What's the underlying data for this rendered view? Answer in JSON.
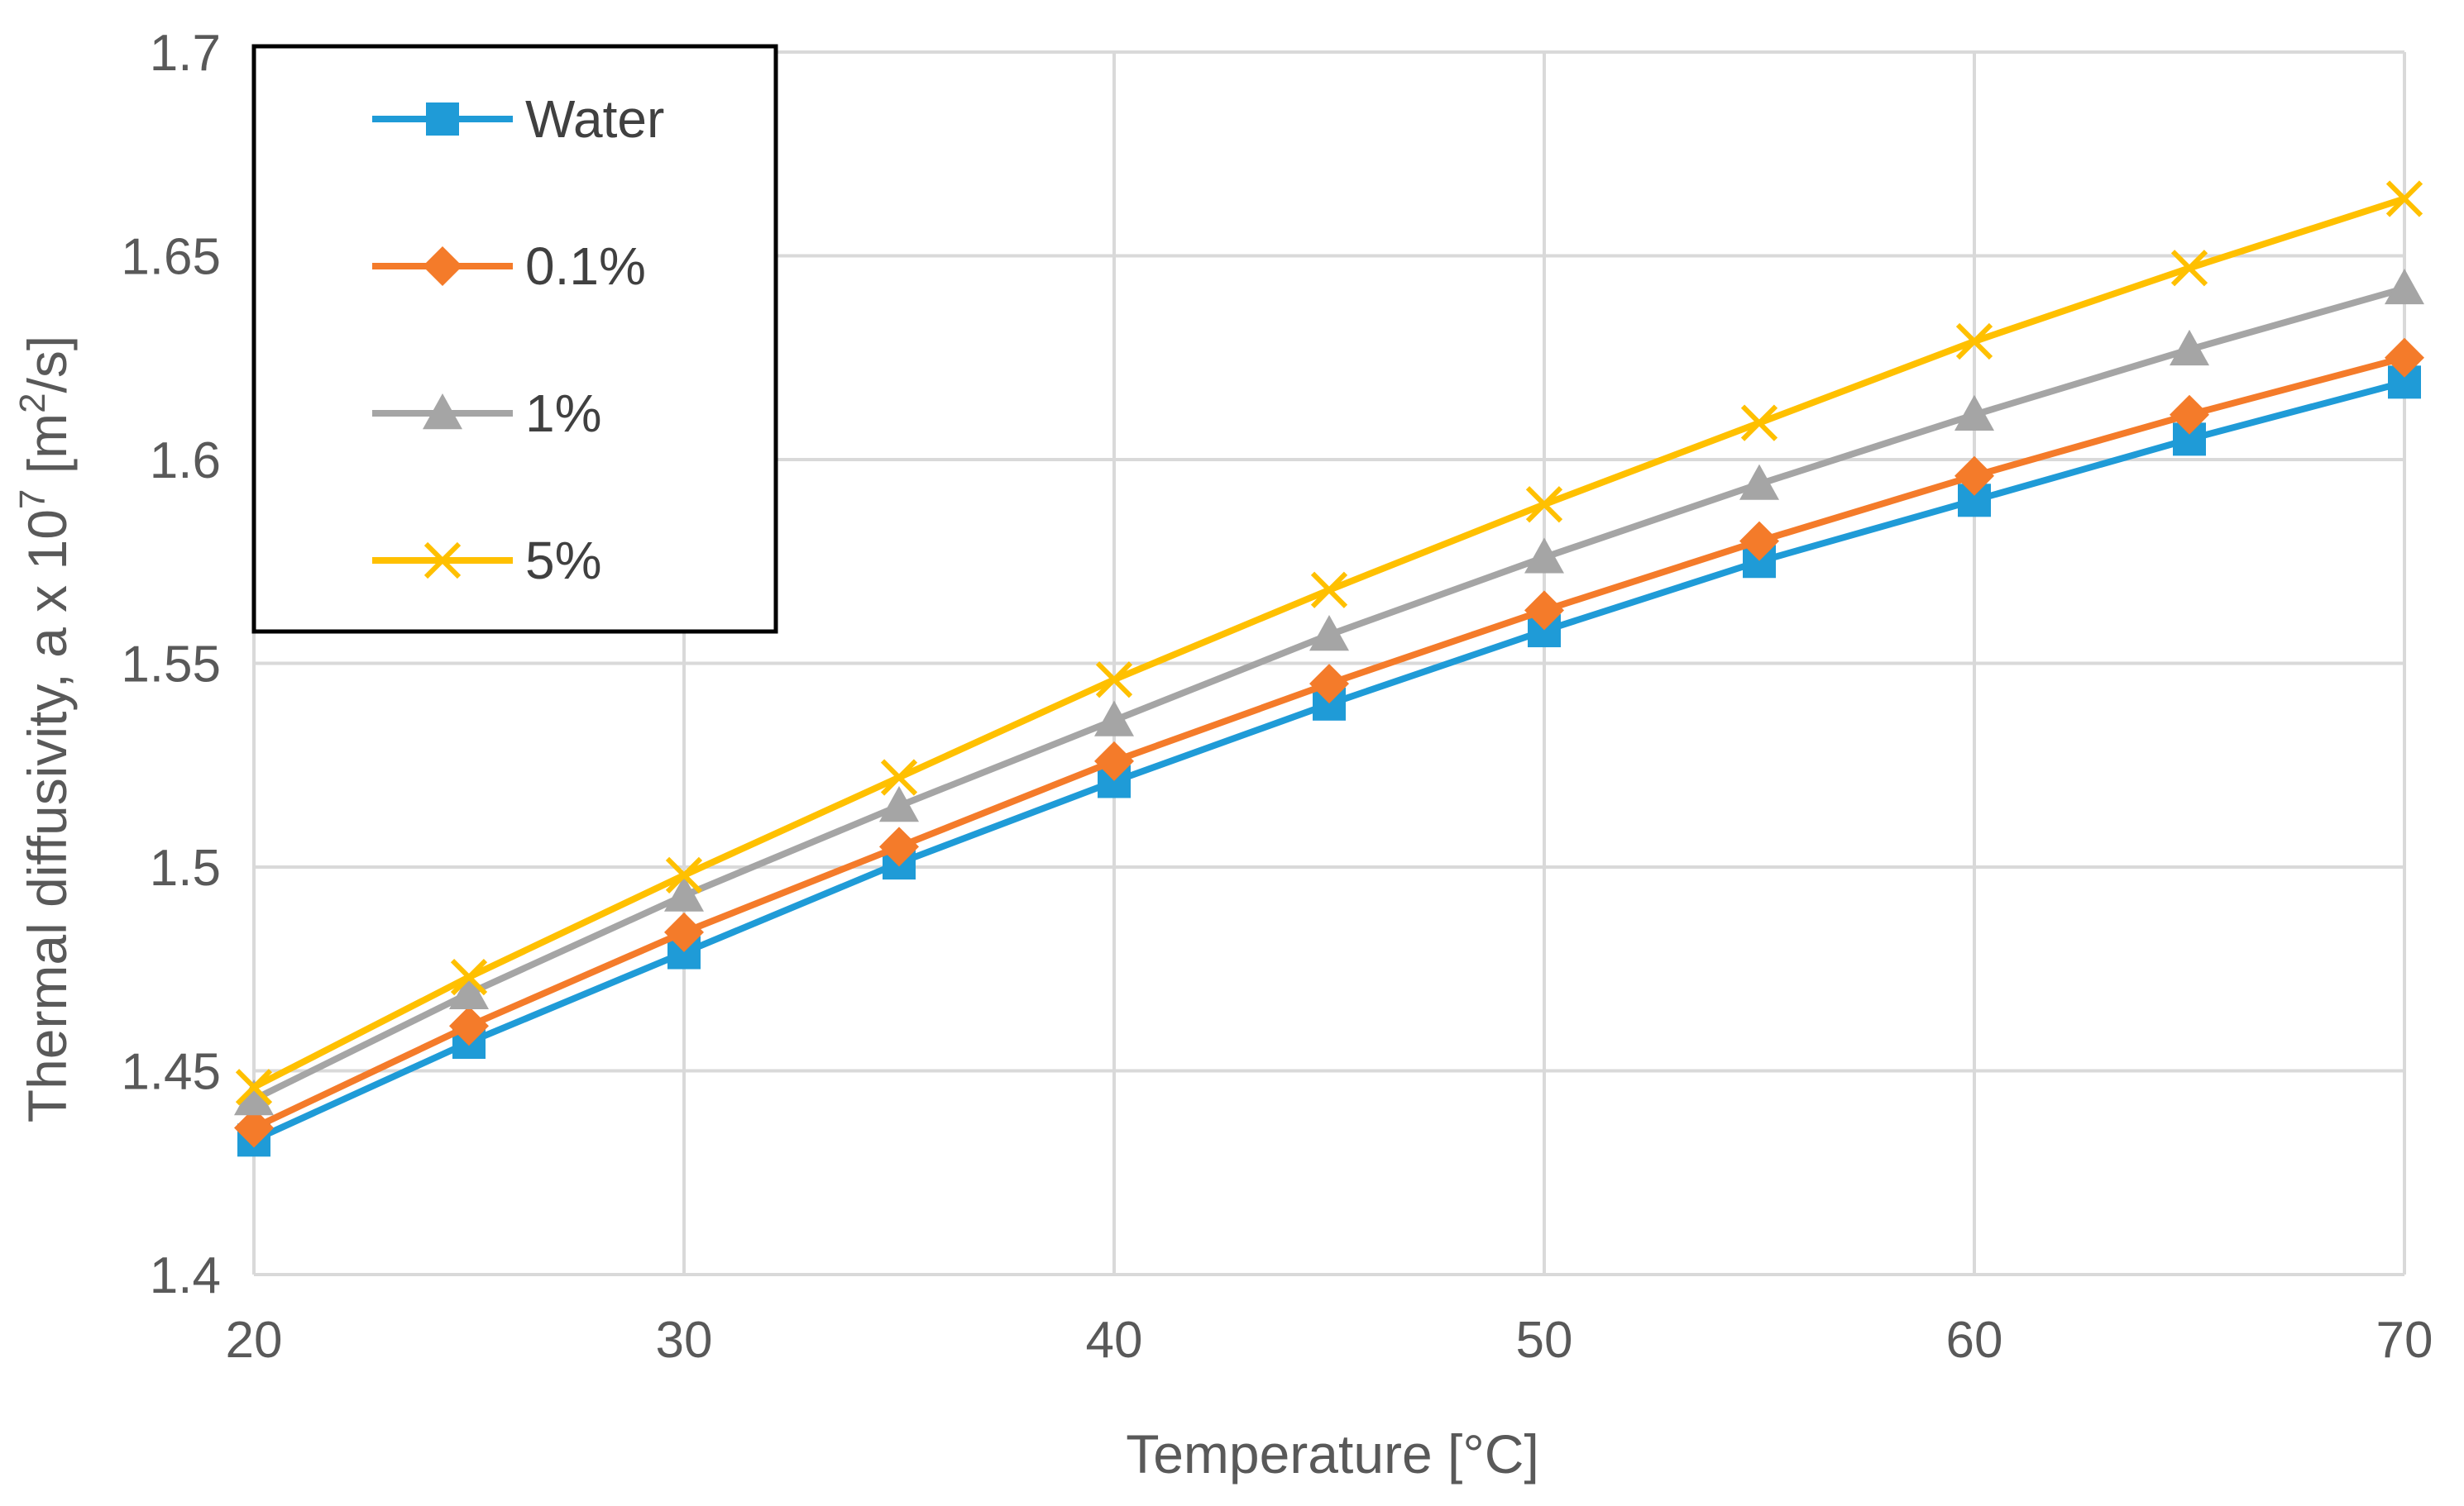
{
  "chart_data": {
    "type": "line",
    "xlabel": "Temperature [°C]",
    "ylabel": {
      "prefix": "Thermal diffusivity, a x 10",
      "exp": "7",
      "unit_open": " [m",
      "unit_exp": "2",
      "unit_close": "/s]"
    },
    "xlim": [
      20,
      70
    ],
    "ylim": [
      1.4,
      1.7
    ],
    "x_ticks": [
      20,
      30,
      40,
      50,
      60,
      70
    ],
    "x_tick_labels": [
      "20",
      "30",
      "40",
      "50",
      "60",
      "70"
    ],
    "y_ticks": [
      1.4,
      1.45,
      1.5,
      1.55,
      1.6,
      1.65,
      1.7
    ],
    "y_tick_labels": [
      "1.4",
      "1.45",
      "1.5",
      "1.55",
      "1.6",
      "1.65",
      "1.7"
    ],
    "grid": true,
    "legend_position": "top-left",
    "x": [
      20,
      25,
      30,
      35,
      40,
      45,
      50,
      55,
      60,
      65,
      70
    ],
    "series": [
      {
        "name": "Water",
        "color": "#1F9BD7",
        "marker": "square",
        "values": [
          1.433,
          1.457,
          1.479,
          1.501,
          1.521,
          1.54,
          1.558,
          1.575,
          1.59,
          1.605,
          1.619
        ]
      },
      {
        "name": "0.1%",
        "color": "#F47B2A",
        "marker": "diamond",
        "values": [
          1.436,
          1.461,
          1.484,
          1.505,
          1.526,
          1.545,
          1.563,
          1.58,
          1.596,
          1.611,
          1.625
        ]
      },
      {
        "name": "1%",
        "color": "#A5A5A5",
        "marker": "triangle",
        "values": [
          1.443,
          1.469,
          1.493,
          1.515,
          1.536,
          1.557,
          1.576,
          1.594,
          1.611,
          1.627,
          1.642
        ]
      },
      {
        "name": "5%",
        "color": "#FFC000",
        "marker": "x",
        "values": [
          1.446,
          1.473,
          1.498,
          1.522,
          1.546,
          1.568,
          1.589,
          1.609,
          1.629,
          1.647,
          1.664
        ]
      }
    ]
  }
}
